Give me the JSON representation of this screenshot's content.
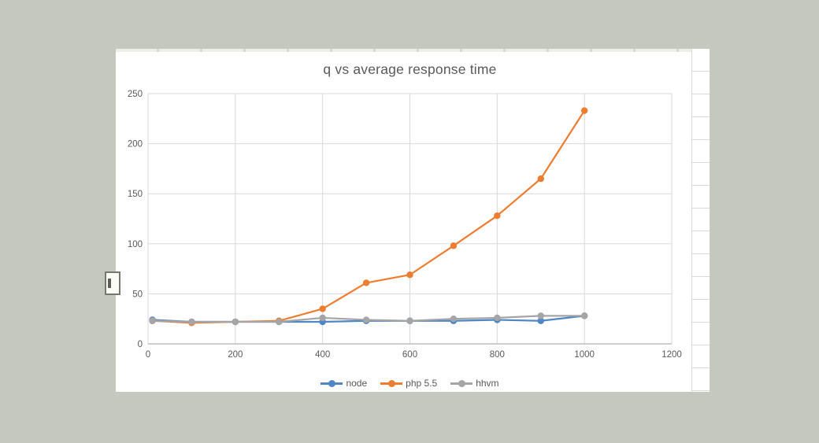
{
  "window": {
    "background_color": "#c5c8bf",
    "sheet_color": "#ffffff",
    "gridline_color": "#d9d9d9",
    "axis_line_color": "#bfbfbf",
    "text_color": "#595959"
  },
  "chart_data": {
    "type": "line",
    "title": "q vs average response time",
    "x": [
      10,
      100,
      200,
      300,
      400,
      500,
      600,
      700,
      800,
      900,
      1000
    ],
    "series": [
      {
        "name": "node",
        "color": "#4e86c6",
        "values": [
          24,
          22,
          22,
          22,
          22,
          23,
          23,
          23,
          24,
          23,
          28
        ]
      },
      {
        "name": "php 5.5",
        "color": "#ed7d31",
        "values": [
          23,
          21,
          22,
          23,
          35,
          61,
          69,
          98,
          128,
          165,
          233
        ]
      },
      {
        "name": "hhvm",
        "color": "#a5a5a5",
        "values": [
          23,
          22,
          22,
          22,
          26,
          24,
          23,
          25,
          26,
          28,
          28
        ]
      }
    ],
    "xlabel": "",
    "ylabel": "",
    "xlim": [
      0,
      1200
    ],
    "ylim": [
      0,
      250
    ],
    "xticks": [
      0,
      200,
      400,
      600,
      800,
      1000,
      1200
    ],
    "yticks": [
      0,
      50,
      100,
      150,
      200,
      250
    ],
    "grid": true,
    "legend_position": "bottom"
  }
}
